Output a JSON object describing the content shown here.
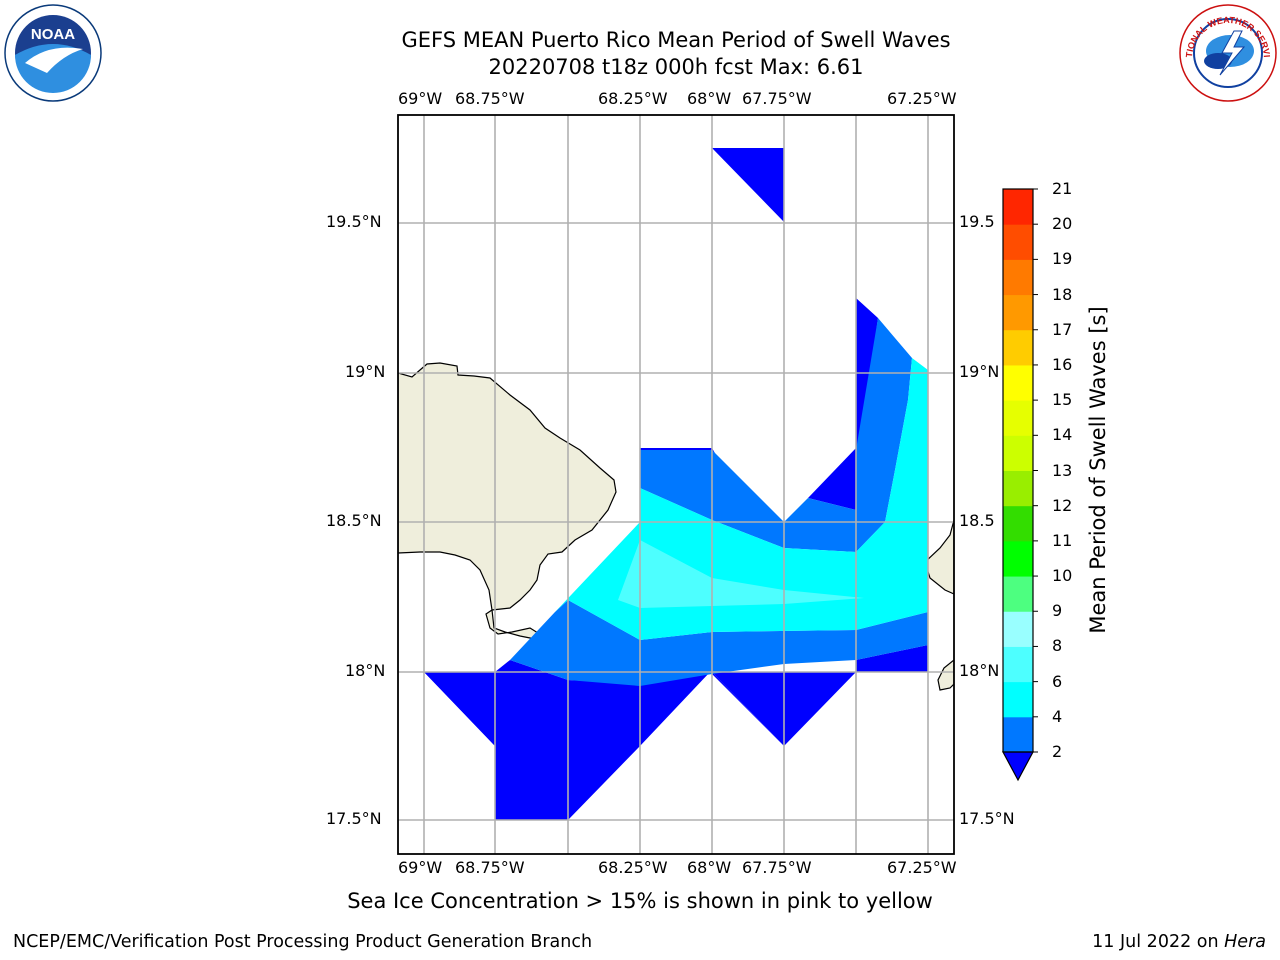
{
  "header": {
    "title_line1": "GEFS MEAN Puerto Rico Mean Period of Swell Waves",
    "title_line2": "20220708 t18z 000h fcst   Max: 6.61"
  },
  "map": {
    "lon_ticks": [
      "69°W",
      "68.75°W",
      "68.25°W",
      "68°W",
      "67.75°W",
      "67.25°W"
    ],
    "lat_ticks": [
      "19.5°N",
      "19°N",
      "18.5°N",
      "18°N",
      "17.5°N"
    ],
    "lat_ticks_right": [
      "19.5",
      "19°N",
      "18.5",
      "18°N",
      "17.5°N"
    ],
    "land_color": "#efeedc",
    "grid_color": "#b0b0b0"
  },
  "colorbar": {
    "label": "Mean Period of Swell Waves [s]",
    "ticks": [
      "2",
      "4",
      "6",
      "8",
      "9",
      "10",
      "11",
      "12",
      "13",
      "14",
      "15",
      "16",
      "17",
      "18",
      "19",
      "20",
      "21"
    ],
    "colors": [
      "#0000ff",
      "#0078ff",
      "#00ffff",
      "#4dffff",
      "#99ffff",
      "#4dff80",
      "#00ff00",
      "#33dd00",
      "#99ee00",
      "#ccff00",
      "#e6ff00",
      "#ffff00",
      "#ffcc00",
      "#ff9900",
      "#ff7a00",
      "#ff4d00",
      "#ff2600",
      "#ff0000"
    ]
  },
  "logos": {
    "left": "NOAA",
    "right": "NATIONAL WEATHER SERVICE"
  },
  "caption": "Sea Ice Concentration > 15% is shown in pink to yellow",
  "footer": {
    "left": "NCEP/EMC/Verification Post Processing Product Generation Branch",
    "right_prefix": "11 Jul 2022 on ",
    "right_host": "Hera"
  }
}
